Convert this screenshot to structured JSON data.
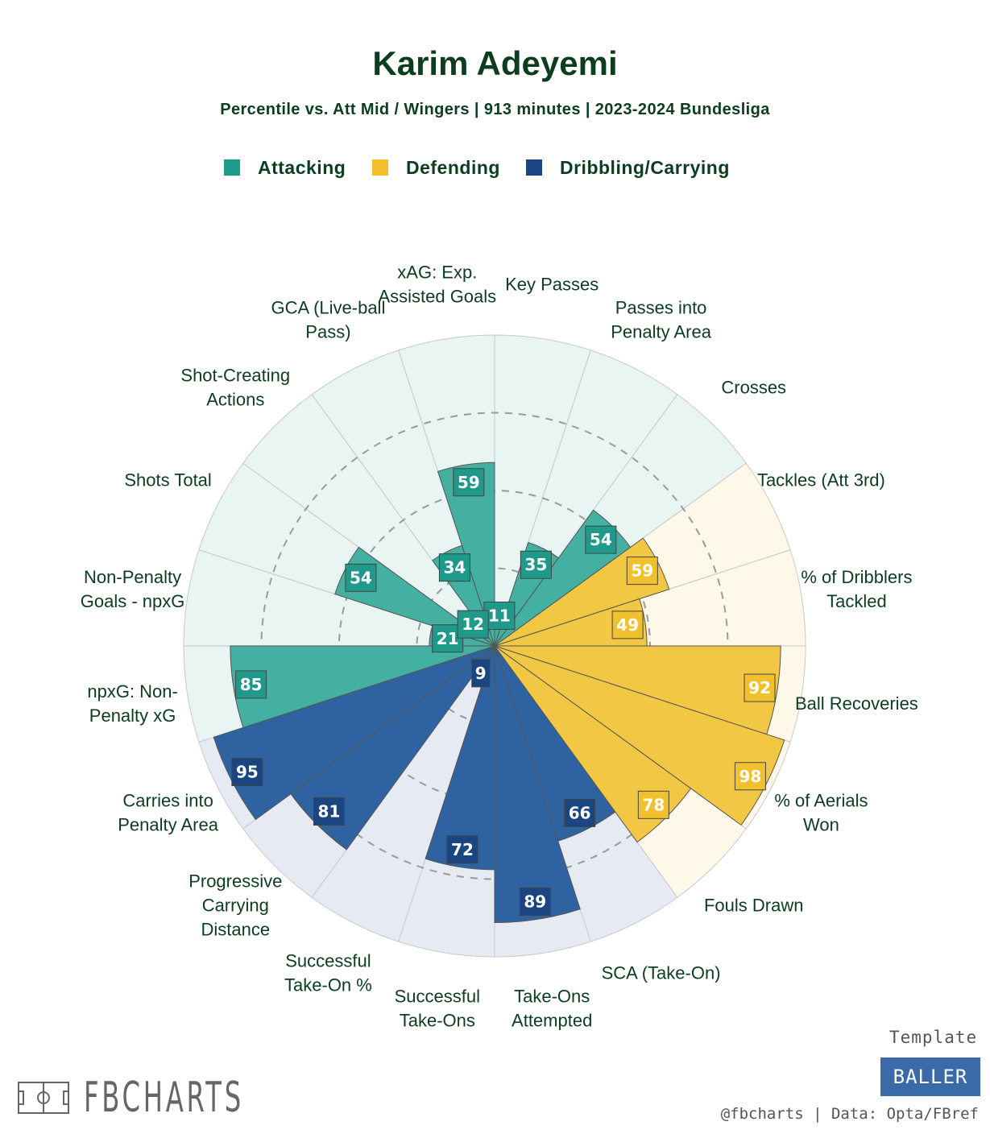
{
  "chart_data": {
    "type": "polar-bar",
    "title": "Karim Adeyemi",
    "subtitle": "Percentile vs. Att Mid / Wingers | 913 minutes | 2023-2024 Bundesliga",
    "rlim": [
      0,
      100
    ],
    "gridlines": [
      25,
      50,
      75
    ],
    "categories_groups": [
      {
        "name": "Attacking",
        "color": "#43b0a2",
        "bg": "#e8f5f3",
        "label_bg": "#1f9a8a"
      },
      {
        "name": "Defending",
        "color": "#f2c744",
        "bg": "#fdf8e7",
        "label_bg": "#f0c12c"
      },
      {
        "name": "Dribbling/Carrying",
        "color": "#2f62a0",
        "bg": "#e6ebf3",
        "label_bg": "#1a4580"
      }
    ],
    "metrics": [
      {
        "label": "Key Passes",
        "value": 11,
        "group": "Attacking"
      },
      {
        "label": "Passes into Penalty Area",
        "value": 35,
        "group": "Attacking"
      },
      {
        "label": "Crosses",
        "value": 54,
        "group": "Attacking"
      },
      {
        "label": "Tackles (Att 3rd)",
        "value": 59,
        "group": "Defending"
      },
      {
        "label": "% of Dribblers Tackled",
        "value": 49,
        "group": "Defending"
      },
      {
        "label": "Ball Recoveries",
        "value": 92,
        "group": "Defending"
      },
      {
        "label": "% of Aerials Won",
        "value": 98,
        "group": "Defending"
      },
      {
        "label": "Fouls Drawn",
        "value": 78,
        "group": "Defending"
      },
      {
        "label": "SCA (Take-On)",
        "value": 66,
        "group": "Dribbling/Carrying"
      },
      {
        "label": "Take-Ons Attempted",
        "value": 89,
        "group": "Dribbling/Carrying"
      },
      {
        "label": "Successful Take-Ons",
        "value": 72,
        "group": "Dribbling/Carrying"
      },
      {
        "label": "Successful Take-On %",
        "value": 9,
        "group": "Dribbling/Carrying"
      },
      {
        "label": "Progressive Carrying Distance",
        "value": 81,
        "group": "Dribbling/Carrying"
      },
      {
        "label": "Carries into Penalty Area",
        "value": 95,
        "group": "Dribbling/Carrying"
      },
      {
        "label": "npxG: Non-Penalty xG",
        "value": 85,
        "group": "Attacking"
      },
      {
        "label": "Non-Penalty Goals - npxG",
        "value": 21,
        "group": "Attacking"
      },
      {
        "label": "Shots Total",
        "value": 54,
        "group": "Attacking"
      },
      {
        "label": "Shot-Creating Actions",
        "value": 12,
        "group": "Attacking"
      },
      {
        "label": "GCA (Live-ball Pass)",
        "value": 34,
        "group": "Attacking"
      },
      {
        "label": "xAG: Exp. Assisted Goals",
        "value": 59,
        "group": "Attacking"
      }
    ]
  },
  "axis_labels": [
    "Key Passes",
    "Passes into\nPenalty Area",
    "Crosses",
    "Tackles (Att 3rd)",
    "% of Dribblers\nTackled",
    "Ball Recoveries",
    "% of Aerials\nWon",
    "Fouls Drawn",
    "SCA (Take-On)",
    "Take-Ons\nAttempted",
    "Successful\nTake-Ons",
    "Successful\nTake-On %",
    "Progressive\nCarrying\nDistance",
    "Carries into\nPenalty Area",
    "npxG: Non-\nPenalty xG",
    "Non-Penalty\nGoals - npxG",
    "Shots Total",
    "Shot-Creating\nActions",
    "GCA (Live-ball\nPass)",
    "xAG: Exp.\nAssisted Goals"
  ],
  "legend": {
    "items": [
      {
        "label": "Attacking",
        "color": "#1f9a8a"
      },
      {
        "label": "Defending",
        "color": "#f0c12c"
      },
      {
        "label": "Dribbling/Carrying",
        "color": "#1a4580"
      }
    ]
  },
  "footer": {
    "brand": "FBCHARTS",
    "template_label": "Template",
    "template_name": "BALLER",
    "credit": "@fbcharts | Data: Opta/FBref"
  }
}
